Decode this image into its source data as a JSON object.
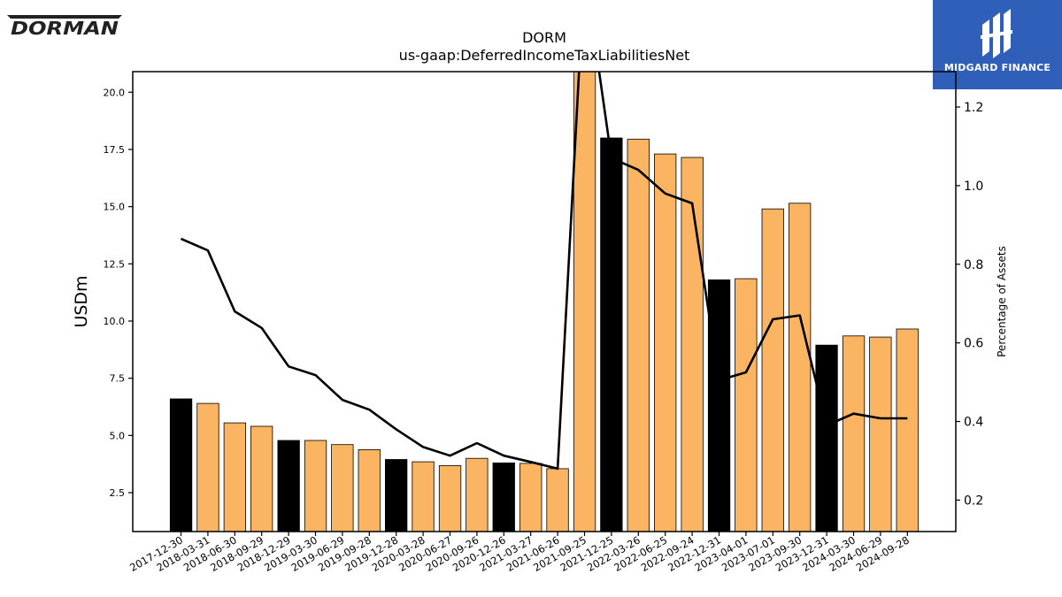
{
  "brand": {
    "company_logo": "DORMAN",
    "badge_text": "MIDGARD FINANCE",
    "badge_icon": "midgard-logo-icon"
  },
  "colors": {
    "bar_fill": "#fbb462",
    "bar_highlight": "#000000",
    "line": "#000000",
    "badge_bg": "#2f5fb8"
  },
  "chart_data": {
    "type": "bar",
    "title": "DORM",
    "subtitle": "us-gaap:DeferredIncomeTaxLiabilitiesNet",
    "ylabel": "USDm",
    "y2label": "Percentage of Assets",
    "ylim": [
      0.8,
      20.9
    ],
    "y2lim": [
      0.12,
      1.29
    ],
    "yticks": [
      "2.5",
      "5.0",
      "7.5",
      "10.0",
      "12.5",
      "15.0",
      "17.5",
      "20.0"
    ],
    "y2ticks": [
      "0.2",
      "0.4",
      "0.6",
      "0.8",
      "1.0",
      "1.2"
    ],
    "grid": false,
    "categories": [
      "2017-12-30",
      "2018-03-31",
      "2018-06-30",
      "2018-09-29",
      "2018-12-29",
      "2019-03-30",
      "2019-06-29",
      "2019-09-28",
      "2019-12-28",
      "2020-03-28",
      "2020-06-27",
      "2020-09-26",
      "2020-12-26",
      "2021-03-27",
      "2021-06-26",
      "2021-09-25",
      "2021-12-25",
      "2022-03-26",
      "2022-06-25",
      "2022-09-24",
      "2022-12-31",
      "2023-04-01",
      "2023-07-01",
      "2023-09-30",
      "2023-12-31",
      "2024-03-30",
      "2024-06-29",
      "2024-09-28"
    ],
    "series": [
      {
        "axis": "left",
        "kind": "bar",
        "values": [
          6.6,
          6.4,
          5.55,
          5.4,
          4.78,
          4.78,
          4.6,
          4.38,
          3.95,
          3.85,
          3.68,
          4.0,
          3.8,
          3.78,
          3.55,
          21.5,
          18.0,
          17.95,
          17.3,
          17.15,
          11.8,
          11.85,
          14.9,
          15.15,
          8.95,
          9.35,
          9.3,
          9.65
        ],
        "highlight": [
          true,
          false,
          false,
          false,
          true,
          false,
          false,
          false,
          true,
          false,
          false,
          false,
          true,
          false,
          false,
          false,
          true,
          false,
          false,
          false,
          true,
          false,
          false,
          false,
          true,
          false,
          false,
          false
        ]
      },
      {
        "axis": "right",
        "kind": "line",
        "values": [
          0.865,
          0.835,
          0.68,
          0.638,
          0.54,
          0.518,
          0.455,
          0.43,
          0.38,
          0.335,
          0.313,
          0.345,
          0.313,
          0.297,
          0.28,
          1.55,
          1.07,
          1.04,
          0.98,
          0.955,
          0.505,
          0.525,
          0.66,
          0.67,
          0.39,
          0.42,
          0.408,
          0.408
        ]
      }
    ]
  }
}
